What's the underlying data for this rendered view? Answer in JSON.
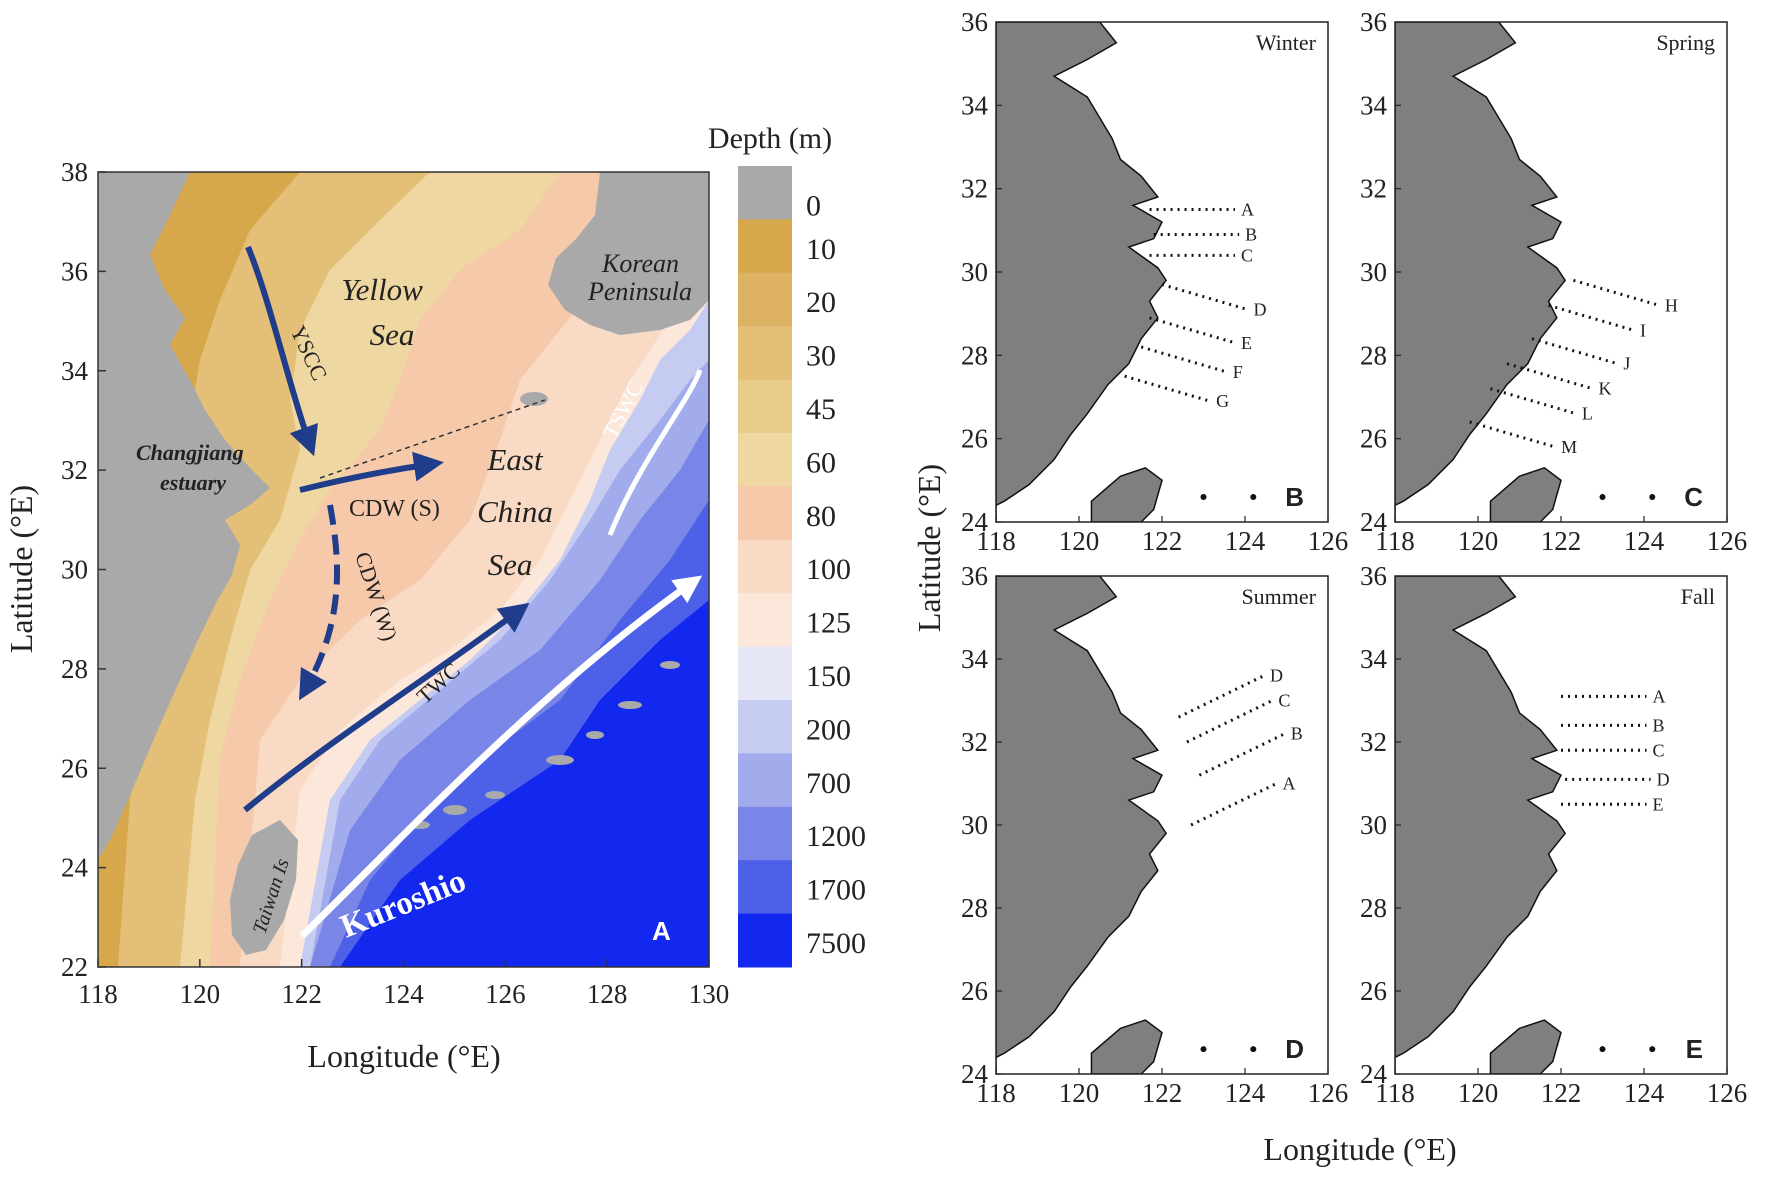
{
  "panelA": {
    "legend_title": "Depth (m)",
    "depth_levels": [
      {
        "label": "0",
        "color": "#a9a9a9"
      },
      {
        "label": "10",
        "color": "#d7a74c"
      },
      {
        "label": "20",
        "color": "#ddb262"
      },
      {
        "label": "30",
        "color": "#e3bf77"
      },
      {
        "label": "45",
        "color": "#e8cb8a"
      },
      {
        "label": "60",
        "color": "#efd7a1"
      },
      {
        "label": "80",
        "color": "#f6c9aa"
      },
      {
        "label": "100",
        "color": "#f9dac4"
      },
      {
        "label": "125",
        "color": "#fbe8da"
      },
      {
        "label": "150",
        "color": "#e5e7f7"
      },
      {
        "label": "200",
        "color": "#c6cbf2"
      },
      {
        "label": "700",
        "color": "#a2acec"
      },
      {
        "label": "1200",
        "color": "#7986e8"
      },
      {
        "label": "1700",
        "color": "#4d60e8"
      },
      {
        "label": "7500",
        "color": "#1228ee"
      }
    ],
    "xticks": [
      "118",
      "120",
      "122",
      "124",
      "126",
      "128",
      "130"
    ],
    "yticks": [
      "22",
      "24",
      "26",
      "28",
      "30",
      "32",
      "34",
      "36",
      "38"
    ],
    "xlabel": "Longitude (°E)",
    "ylabel": "Latitude (°E)",
    "labels": {
      "yellow_sea_1": "Yellow",
      "yellow_sea_2": "Sea",
      "east_china_sea_1": "East",
      "east_china_sea_2": "China",
      "east_china_sea_3": "Sea",
      "korean_1": "Korean",
      "korean_2": "Peninsula",
      "changjiang_1": "Changjiang",
      "changjiang_2": "estuary",
      "taiwan": "Taiwan Is",
      "kuroshio": "Kuroshio",
      "yscc": "YSCC",
      "cdw_s": "CDW (S)",
      "cdw_w": "CDW (W)",
      "twc": "TWC",
      "tswc": "TSWC",
      "panel": "A"
    }
  },
  "small_panels": {
    "xticks": [
      "118",
      "120",
      "122",
      "124",
      "126"
    ],
    "yticks": [
      "24",
      "26",
      "28",
      "30",
      "32",
      "34",
      "36"
    ],
    "xlabel": "Longitude (°E)",
    "ylabel": "Latitude (°E)",
    "panels": [
      {
        "season": "Winter",
        "letter": "B",
        "stations": [
          {
            "label": "A",
            "lon": 124.0,
            "lat": 31.5
          },
          {
            "label": "B",
            "lon": 124.1,
            "lat": 30.9
          },
          {
            "label": "C",
            "lon": 124.0,
            "lat": 30.4
          },
          {
            "label": "D",
            "lon": 124.3,
            "lat": 29.1
          },
          {
            "label": "E",
            "lon": 124.0,
            "lat": 28.3
          },
          {
            "label": "F",
            "lon": 123.8,
            "lat": 27.6
          },
          {
            "label": "G",
            "lon": 123.4,
            "lat": 26.9
          }
        ]
      },
      {
        "season": "Spring",
        "letter": "C",
        "stations": [
          {
            "label": "H",
            "lon": 124.6,
            "lat": 29.2
          },
          {
            "label": "I",
            "lon": 124.0,
            "lat": 28.6
          },
          {
            "label": "J",
            "lon": 123.6,
            "lat": 27.8
          },
          {
            "label": "K",
            "lon": 123.0,
            "lat": 27.2
          },
          {
            "label": "L",
            "lon": 122.6,
            "lat": 26.6
          },
          {
            "label": "M",
            "lon": 122.1,
            "lat": 25.8
          }
        ]
      },
      {
        "season": "Summer",
        "letter": "D",
        "stations": [
          {
            "label": "D",
            "lon": 124.7,
            "lat": 33.6
          },
          {
            "label": "C",
            "lon": 124.9,
            "lat": 33.0
          },
          {
            "label": "B",
            "lon": 125.2,
            "lat": 32.2
          },
          {
            "label": "A",
            "lon": 125.0,
            "lat": 31.0
          }
        ]
      },
      {
        "season": "Fall",
        "letter": "E",
        "stations": [
          {
            "label": "A",
            "lon": 124.3,
            "lat": 33.1
          },
          {
            "label": "B",
            "lon": 124.3,
            "lat": 32.4
          },
          {
            "label": "C",
            "lon": 124.3,
            "lat": 31.8
          },
          {
            "label": "D",
            "lon": 124.4,
            "lat": 31.1
          },
          {
            "label": "E",
            "lon": 124.3,
            "lat": 30.5
          }
        ]
      }
    ]
  }
}
